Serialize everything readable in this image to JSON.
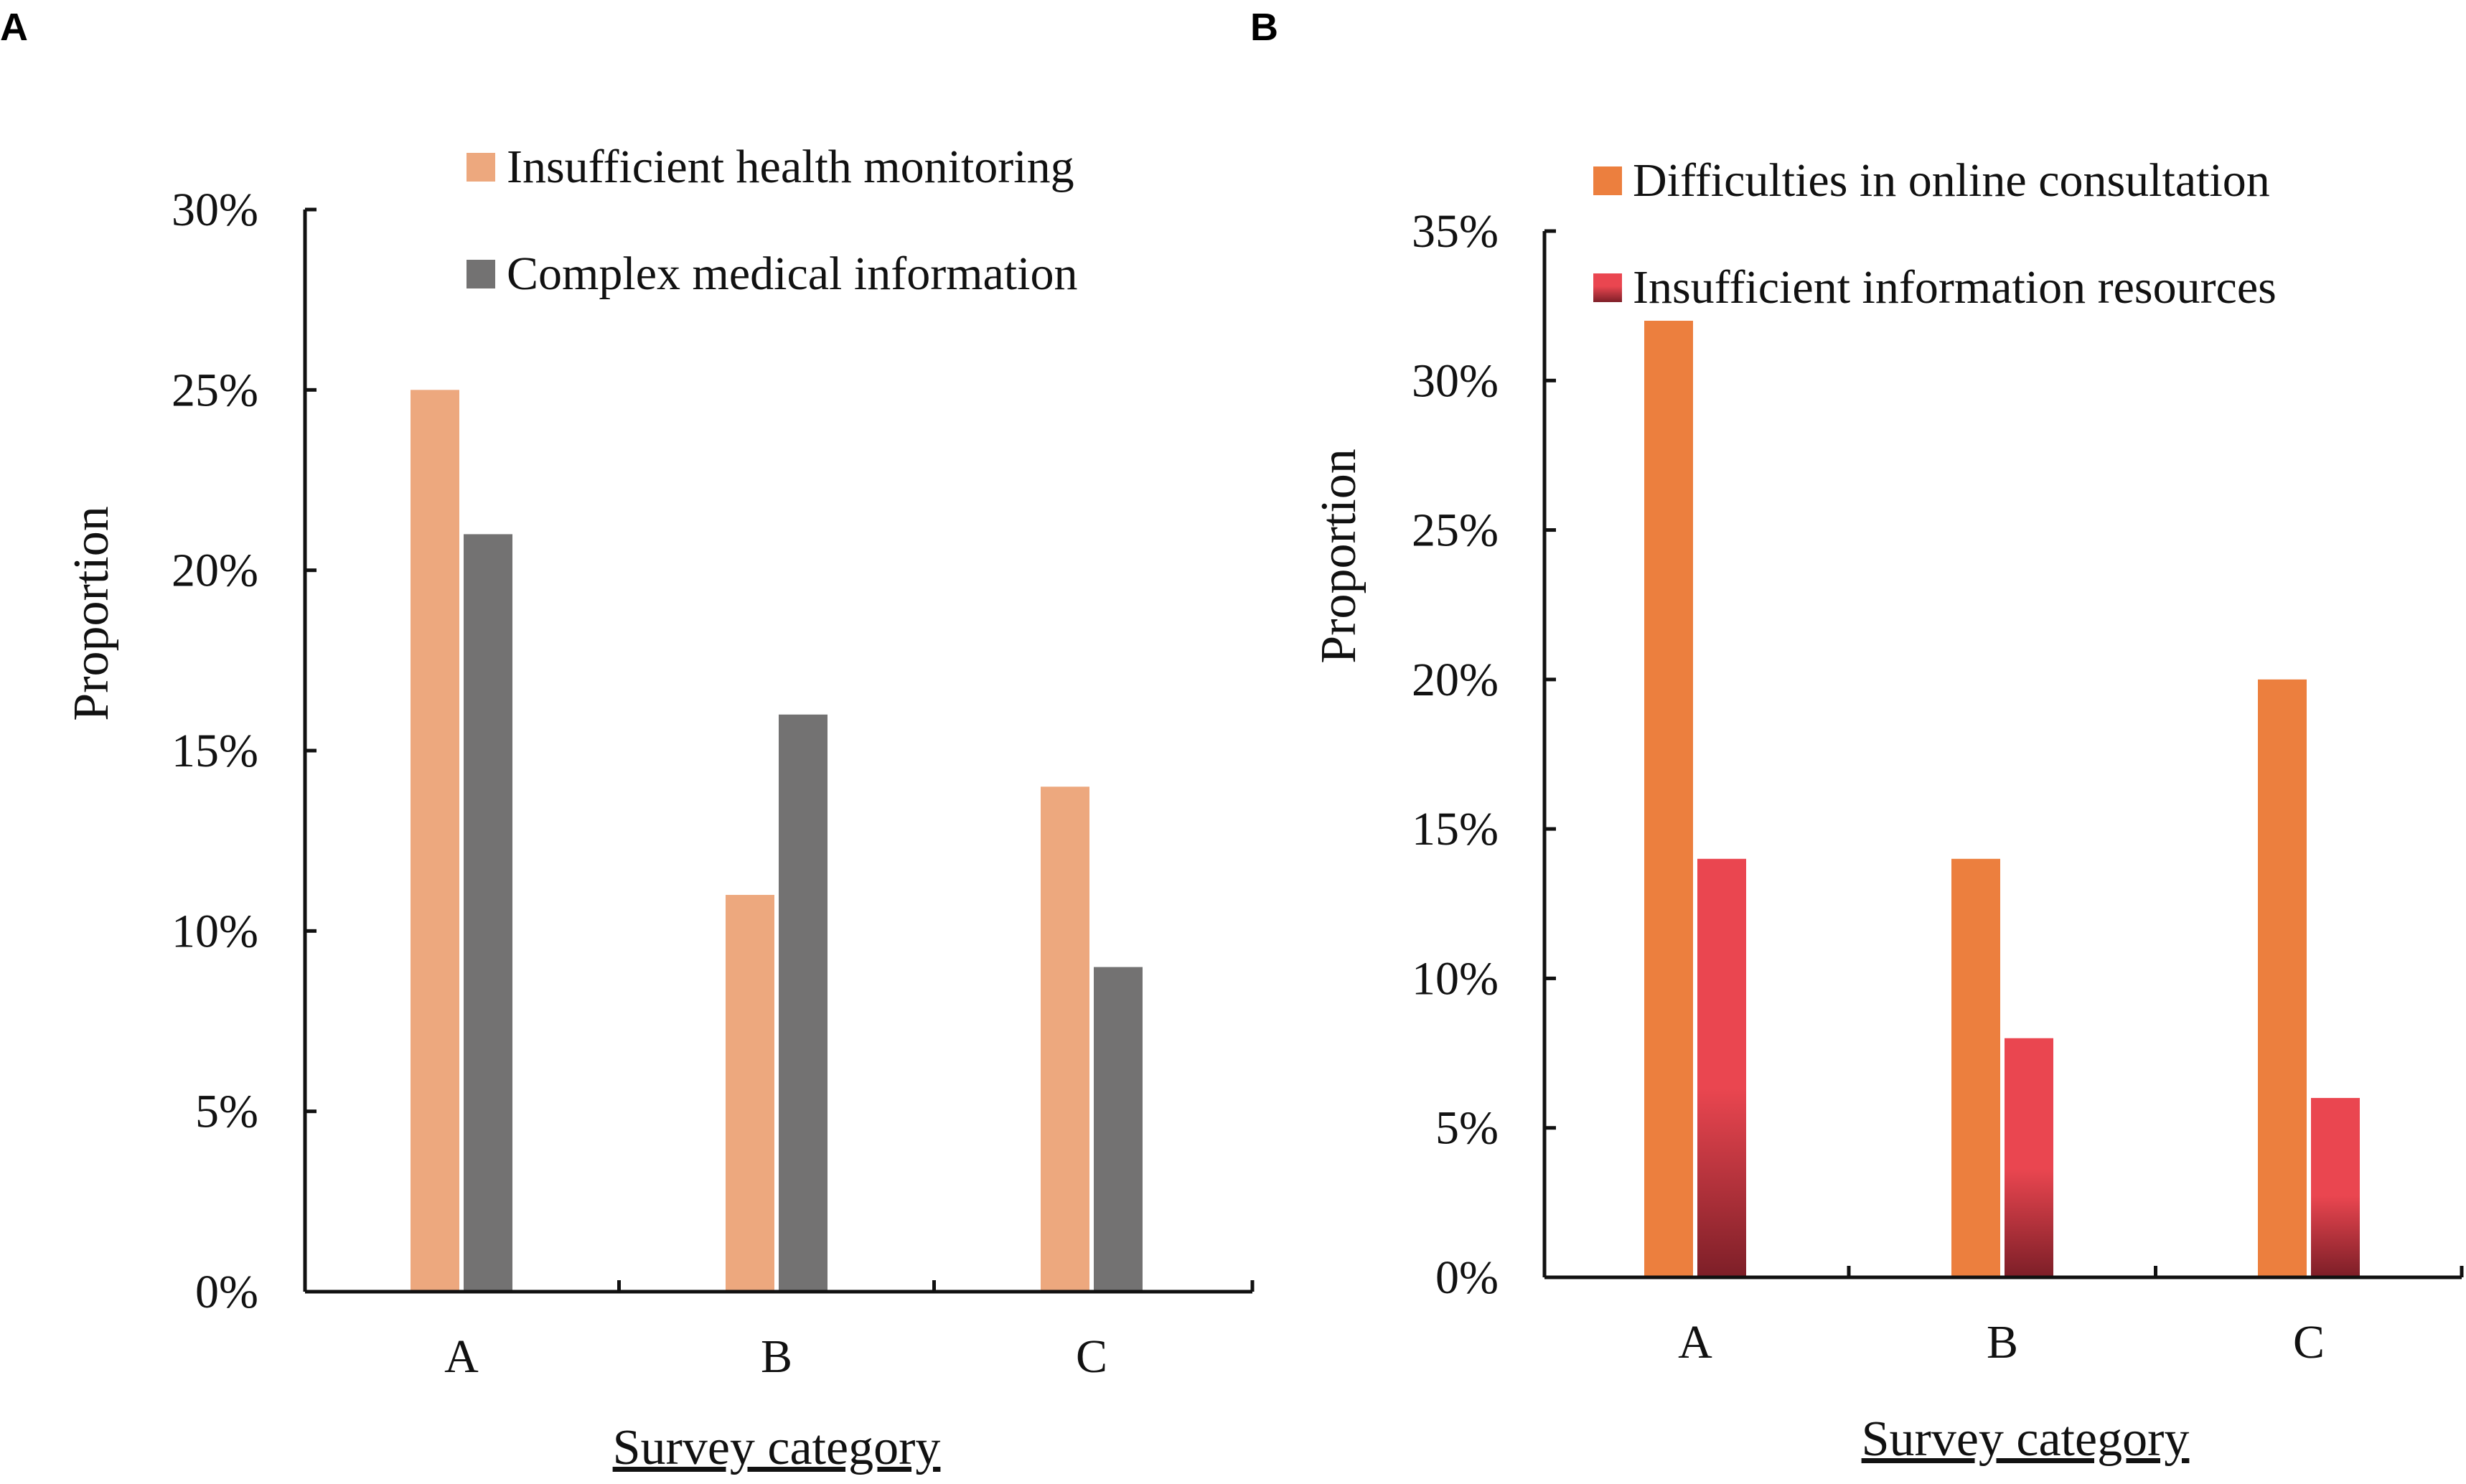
{
  "chart_data": [
    {
      "panel": "A",
      "type": "bar",
      "title": "",
      "xlabel": "Survey category",
      "ylabel": "Proportion",
      "categories": [
        "A",
        "B",
        "C"
      ],
      "ylim": [
        0,
        30
      ],
      "yticks": [
        "0%",
        "5%",
        "10%",
        "15%",
        "20%",
        "25%",
        "30%"
      ],
      "series": [
        {
          "name": "Insufficient health monitoring",
          "values": [
            25,
            11,
            14
          ],
          "color": "#EDA87E"
        },
        {
          "name": "Complex medical information",
          "values": [
            21,
            16,
            9
          ],
          "color": "#737272"
        }
      ],
      "legend_position": "top-right"
    },
    {
      "panel": "B",
      "type": "bar",
      "title": "",
      "xlabel": "Survey category",
      "ylabel": "Proportion",
      "categories": [
        "A",
        "B",
        "C"
      ],
      "ylim": [
        0,
        35
      ],
      "yticks": [
        "0%",
        "5%",
        "10%",
        "15%",
        "20%",
        "25%",
        "30%",
        "35%"
      ],
      "series": [
        {
          "name": "Difficulties in online consultation",
          "values": [
            32,
            14,
            20
          ],
          "color": "#EC7F3E"
        },
        {
          "name": "Insufficient information resources",
          "values": [
            14,
            8,
            6
          ],
          "color": "#EA4650",
          "color_dark": "#7E1F28"
        }
      ],
      "legend_position": "top-right"
    }
  ]
}
